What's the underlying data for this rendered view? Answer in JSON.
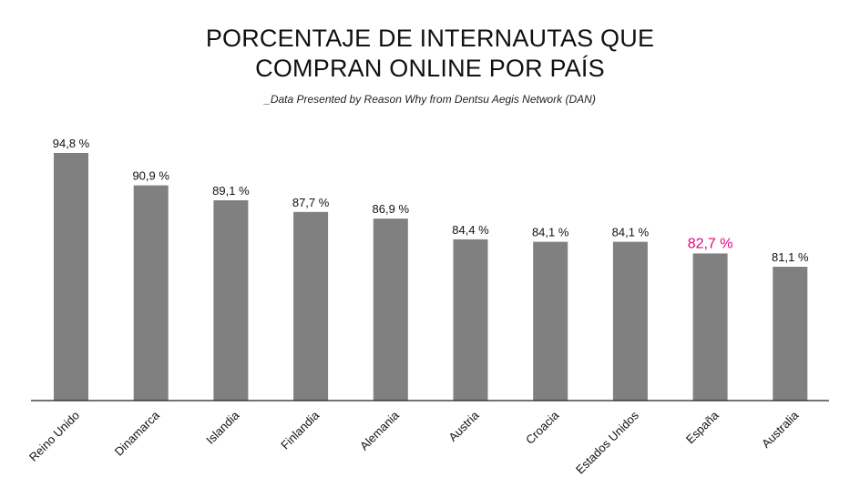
{
  "chart_data": {
    "type": "bar",
    "title_lines": [
      "PORCENTAJE DE INTERNAUTAS QUE",
      "COMPRAN ONLINE POR PAÍS"
    ],
    "subtitle": "_Data Presented by Reason Why from Dentsu Aegis Network (DAN)",
    "categories": [
      "Reino Unido",
      "Dinamarca",
      "Islandia",
      "Finlandia",
      "Alemania",
      "Austria",
      "Croacia",
      "Estados Unidos",
      "España",
      "Australia"
    ],
    "values": [
      94.8,
      90.9,
      89.1,
      87.7,
      86.9,
      84.4,
      84.1,
      84.1,
      82.7,
      81.1
    ],
    "value_labels": [
      "94,8 %",
      "90,9 %",
      "89,1 %",
      "87,7 %",
      "86,9 %",
      "84,4 %",
      "84,1 %",
      "84,1 %",
      "82,7 %",
      "81,1 %"
    ],
    "highlight_category": "España",
    "ylim": [
      65,
      96
    ],
    "grid": false,
    "legend": "none",
    "colors": {
      "bar": "#808080",
      "highlight_label": "#e6007e",
      "label": "#111111",
      "axis": "#222222"
    }
  }
}
